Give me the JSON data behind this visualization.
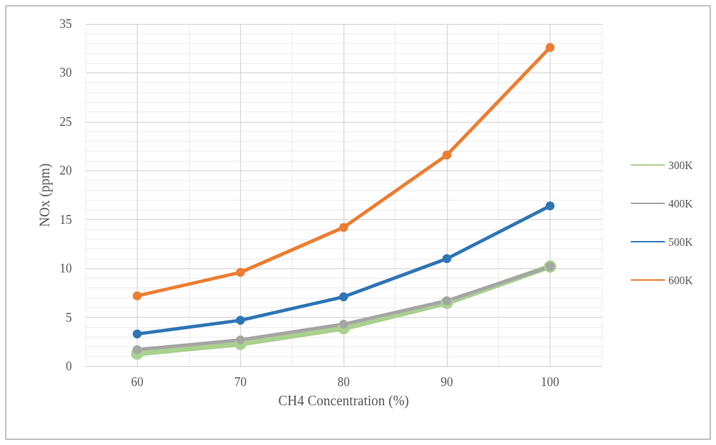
{
  "chart_data": {
    "type": "line",
    "xlabel": "CH4 Concentration (%)",
    "ylabel": "NOx (ppm)",
    "x": [
      60,
      70,
      80,
      90,
      100
    ],
    "series": [
      {
        "name": "300K",
        "color": "#a9d18e",
        "values": [
          1.3,
          2.3,
          3.9,
          6.5,
          10.2
        ]
      },
      {
        "name": "400K",
        "color": "#a5a5a5",
        "values": [
          1.7,
          2.7,
          4.3,
          6.7,
          10.2
        ]
      },
      {
        "name": "500K",
        "color": "#2e75b6",
        "values": [
          3.3,
          4.7,
          7.1,
          11.0,
          16.4
        ]
      },
      {
        "name": "600K",
        "color": "#ed7d31",
        "values": [
          7.2,
          9.6,
          14.2,
          21.6,
          32.6
        ]
      }
    ],
    "xlim": [
      55,
      105
    ],
    "xticks": [
      {
        "value": 55,
        "label": null
      },
      60,
      {
        "value": 65,
        "label": null
      },
      70,
      {
        "value": 75,
        "label": null
      },
      80,
      {
        "value": 85,
        "label": null
      },
      90,
      {
        "value": 95,
        "label": null
      },
      100,
      {
        "value": 105,
        "label": null
      }
    ],
    "ylim": [
      0,
      35
    ],
    "yticks": [
      0,
      {
        "value": 1,
        "label": null
      },
      {
        "value": 2,
        "label": null
      },
      {
        "value": 3,
        "label": null
      },
      {
        "value": 4,
        "label": null
      },
      5,
      {
        "value": 6,
        "label": null
      },
      {
        "value": 7,
        "label": null
      },
      {
        "value": 8,
        "label": null
      },
      {
        "value": 9,
        "label": null
      },
      10,
      {
        "value": 11,
        "label": null
      },
      {
        "value": 12,
        "label": null
      },
      {
        "value": 13,
        "label": null
      },
      {
        "value": 14,
        "label": null
      },
      15,
      {
        "value": 16,
        "label": null
      },
      {
        "value": 17,
        "label": null
      },
      {
        "value": 18,
        "label": null
      },
      {
        "value": 19,
        "label": null
      },
      20,
      {
        "value": 21,
        "label": null
      },
      {
        "value": 22,
        "label": null
      },
      {
        "value": 23,
        "label": null
      },
      {
        "value": 24,
        "label": null
      },
      25,
      {
        "value": 26,
        "label": null
      },
      {
        "value": 27,
        "label": null
      },
      {
        "value": 28,
        "label": null
      },
      {
        "value": 29,
        "label": null
      },
      30,
      {
        "value": 31,
        "label": null
      },
      {
        "value": 32,
        "label": null
      },
      {
        "value": 33,
        "label": null
      },
      {
        "value": 34,
        "label": null
      },
      35
    ],
    "grid": true,
    "legend": "right",
    "marker": "circle",
    "line_style": "solid"
  }
}
